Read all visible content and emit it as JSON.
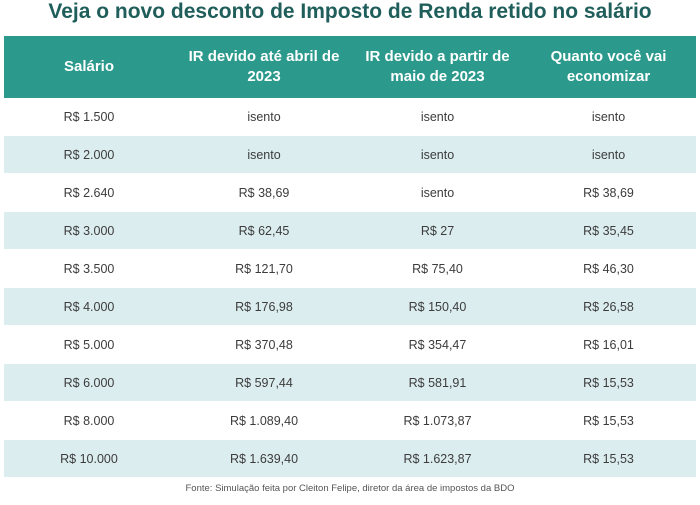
{
  "title": "Veja o novo desconto de Imposto de Renda retido no salário",
  "table": {
    "headers": [
      "Salário",
      "IR devido até abril de 2023",
      "IR devido a partir de maio de 2023",
      "Quanto você vai economizar"
    ],
    "rows": [
      [
        "R$ 1.500",
        "isento",
        "isento",
        "isento"
      ],
      [
        "R$ 2.000",
        "isento",
        "isento",
        "isento"
      ],
      [
        "R$ 2.640",
        "R$ 38,69",
        "isento",
        "R$ 38,69"
      ],
      [
        "R$ 3.000",
        "R$ 62,45",
        "R$ 27",
        "R$ 35,45"
      ],
      [
        "R$ 3.500",
        "R$ 121,70",
        "R$ 75,40",
        "R$ 46,30"
      ],
      [
        "R$ 4.000",
        "R$ 176,98",
        "R$ 150,40",
        "R$ 26,58"
      ],
      [
        "R$ 5.000",
        "R$ 370,48",
        "R$ 354,47",
        "R$ 16,01"
      ],
      [
        "R$ 6.000",
        "R$ 597,44",
        "R$ 581,91",
        "R$ 15,53"
      ],
      [
        "R$ 8.000",
        "R$ 1.089,40",
        "R$ 1.073,87",
        "R$ 15,53"
      ],
      [
        "R$ 10.000",
        "R$ 1.639,40",
        "R$ 1.623,87",
        "R$ 15,53"
      ]
    ]
  },
  "source": "Fonte: Simulação feita por Cleiton Felipe, diretor da área de impostos da BDO",
  "colors": {
    "header_bg": "#2b9a8c",
    "title": "#1f5e5a",
    "stripe": "#dcedf0"
  }
}
